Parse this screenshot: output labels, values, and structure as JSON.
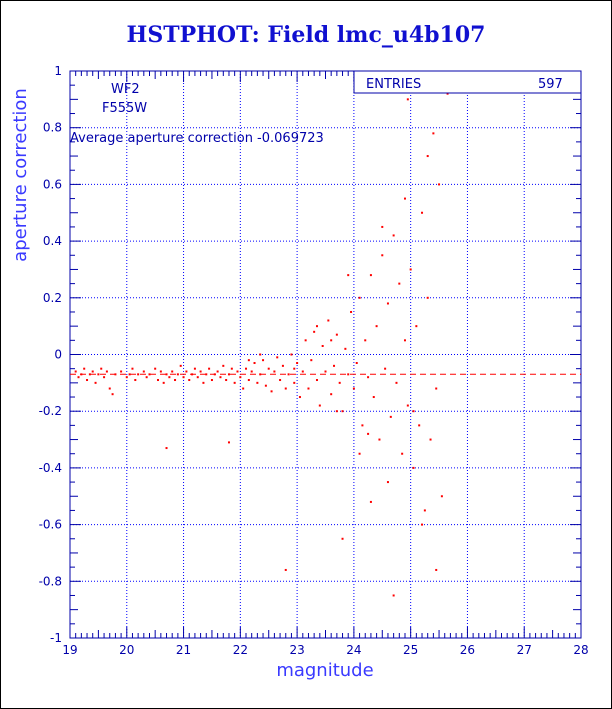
{
  "header": {
    "title": "HSTPHOT: Field lmc_u4b107"
  },
  "stats": {
    "entries_label": "ENTRIES",
    "entries_value": "597"
  },
  "annotations": {
    "camera": "WF2",
    "filter": "F555W",
    "average_text": "Average aperture correction -0.069723"
  },
  "colors": {
    "axis": "#0000aa",
    "grid": "#0000ff",
    "points": "#ff0000",
    "title": "#1010d0"
  },
  "chart_data": {
    "type": "scatter",
    "title": "HSTPHOT: Field lmc_u4b107",
    "xlabel": "magnitude",
    "ylabel": "aperture correction",
    "xlim": [
      19,
      28
    ],
    "ylim": [
      -1,
      1
    ],
    "x_ticks": [
      "19",
      "20",
      "21",
      "22",
      "23",
      "24",
      "25",
      "26",
      "27",
      "28"
    ],
    "y_ticks": [
      "-1",
      "-0.8",
      "-0.6",
      "-0.4",
      "-0.2",
      "0",
      "0.2",
      "0.4",
      "0.6",
      "0.8",
      "1"
    ],
    "grid": true,
    "reference_line": {
      "y": -0.069723,
      "style": "dashed"
    },
    "series": [
      {
        "points": [
          [
            19.1,
            -0.06
          ],
          [
            19.15,
            -0.08
          ],
          [
            19.2,
            -0.07
          ],
          [
            19.25,
            -0.05
          ],
          [
            19.3,
            -0.09
          ],
          [
            19.35,
            -0.07
          ],
          [
            19.4,
            -0.06
          ],
          [
            19.45,
            -0.1
          ],
          [
            19.5,
            -0.07
          ],
          [
            19.55,
            -0.05
          ],
          [
            19.6,
            -0.08
          ],
          [
            19.65,
            -0.06
          ],
          [
            19.7,
            -0.12
          ],
          [
            19.75,
            -0.14
          ],
          [
            19.8,
            -0.07
          ],
          [
            19.9,
            -0.06
          ],
          [
            20.0,
            -0.08
          ],
          [
            20.05,
            -0.07
          ],
          [
            20.1,
            -0.05
          ],
          [
            20.15,
            -0.09
          ],
          [
            20.2,
            -0.07
          ],
          [
            20.3,
            -0.06
          ],
          [
            20.35,
            -0.08
          ],
          [
            20.4,
            -0.07
          ],
          [
            20.5,
            -0.05
          ],
          [
            20.55,
            -0.09
          ],
          [
            20.6,
            -0.06
          ],
          [
            20.65,
            -0.1
          ],
          [
            20.7,
            -0.07
          ],
          [
            20.75,
            -0.08
          ],
          [
            20.8,
            -0.06
          ],
          [
            20.85,
            -0.09
          ],
          [
            20.9,
            -0.07
          ],
          [
            20.95,
            -0.04
          ],
          [
            21.0,
            -0.08
          ],
          [
            21.05,
            -0.06
          ],
          [
            21.1,
            -0.09
          ],
          [
            21.15,
            -0.07
          ],
          [
            21.2,
            -0.05
          ],
          [
            21.25,
            -0.08
          ],
          [
            21.3,
            -0.06
          ],
          [
            21.35,
            -0.1
          ],
          [
            21.4,
            -0.07
          ],
          [
            21.45,
            -0.05
          ],
          [
            21.5,
            -0.09
          ],
          [
            21.55,
            -0.07
          ],
          [
            21.6,
            -0.06
          ],
          [
            21.65,
            -0.08
          ],
          [
            21.7,
            -0.04
          ],
          [
            21.75,
            -0.09
          ],
          [
            21.8,
            -0.07
          ],
          [
            21.85,
            -0.05
          ],
          [
            21.9,
            -0.1
          ],
          [
            21.95,
            -0.06
          ],
          [
            22.0,
            -0.08
          ],
          [
            22.05,
            -0.12
          ],
          [
            22.1,
            -0.05
          ],
          [
            22.15,
            -0.09
          ],
          [
            22.2,
            -0.06
          ],
          [
            22.25,
            -0.03
          ],
          [
            22.3,
            -0.1
          ],
          [
            22.35,
            -0.07
          ],
          [
            22.4,
            -0.02
          ],
          [
            22.45,
            -0.11
          ],
          [
            22.5,
            -0.05
          ],
          [
            22.55,
            -0.13
          ],
          [
            22.6,
            -0.06
          ],
          [
            22.65,
            -0.01
          ],
          [
            22.7,
            -0.09
          ],
          [
            22.75,
            -0.04
          ],
          [
            22.8,
            -0.12
          ],
          [
            22.85,
            -0.07
          ],
          [
            22.9,
            0.0
          ],
          [
            22.95,
            -0.1
          ],
          [
            23.0,
            -0.03
          ],
          [
            23.05,
            -0.15
          ],
          [
            23.1,
            -0.06
          ],
          [
            23.15,
            0.05
          ],
          [
            23.2,
            -0.12
          ],
          [
            23.25,
            -0.02
          ],
          [
            23.3,
            0.08
          ],
          [
            23.35,
            -0.09
          ],
          [
            23.4,
            -0.18
          ],
          [
            23.45,
            0.03
          ],
          [
            23.5,
            -0.06
          ],
          [
            23.55,
            0.12
          ],
          [
            23.6,
            -0.14
          ],
          [
            23.65,
            -0.04
          ],
          [
            23.7,
            0.07
          ],
          [
            23.75,
            -0.1
          ],
          [
            23.8,
            -0.2
          ],
          [
            23.85,
            0.02
          ],
          [
            23.9,
            -0.07
          ],
          [
            23.95,
            0.15
          ],
          [
            24.0,
            -0.12
          ],
          [
            24.05,
            -0.03
          ],
          [
            24.1,
            0.2
          ],
          [
            24.15,
            -0.25
          ],
          [
            24.2,
            0.05
          ],
          [
            24.25,
            -0.08
          ],
          [
            24.3,
            0.28
          ],
          [
            24.35,
            -0.15
          ],
          [
            24.4,
            0.1
          ],
          [
            24.45,
            -0.3
          ],
          [
            24.5,
            0.35
          ],
          [
            24.55,
            -0.05
          ],
          [
            24.6,
            0.18
          ],
          [
            24.65,
            -0.22
          ],
          [
            24.7,
            0.42
          ],
          [
            24.75,
            -0.1
          ],
          [
            24.8,
            0.25
          ],
          [
            24.85,
            -0.35
          ],
          [
            24.9,
            0.55
          ],
          [
            24.95,
            -0.18
          ],
          [
            25.0,
            0.3
          ],
          [
            25.05,
            -0.4
          ],
          [
            25.1,
            0.1
          ],
          [
            25.15,
            -0.25
          ],
          [
            25.2,
            0.5
          ],
          [
            25.25,
            -0.55
          ],
          [
            25.3,
            0.2
          ],
          [
            25.35,
            -0.3
          ],
          [
            25.4,
            0.78
          ],
          [
            25.45,
            -0.12
          ],
          [
            25.5,
            0.6
          ],
          [
            25.55,
            -0.5
          ],
          [
            25.3,
            0.7
          ],
          [
            24.95,
            0.9
          ],
          [
            25.65,
            0.92
          ],
          [
            24.7,
            -0.85
          ],
          [
            25.45,
            -0.76
          ],
          [
            22.8,
            -0.76
          ],
          [
            20.7,
            -0.33
          ],
          [
            23.8,
            -0.65
          ],
          [
            24.3,
            -0.52
          ],
          [
            21.8,
            -0.31
          ],
          [
            23.9,
            0.28
          ],
          [
            24.5,
            0.45
          ],
          [
            22.35,
            0.0
          ],
          [
            22.15,
            -0.02
          ],
          [
            23.35,
            0.1
          ],
          [
            23.6,
            0.05
          ],
          [
            24.1,
            -0.35
          ],
          [
            24.25,
            -0.28
          ],
          [
            24.9,
            0.05
          ],
          [
            25.05,
            -0.2
          ],
          [
            22.95,
            -0.05
          ],
          [
            23.7,
            -0.2
          ],
          [
            24.6,
            -0.45
          ],
          [
            25.2,
            -0.6
          ]
        ]
      }
    ]
  }
}
